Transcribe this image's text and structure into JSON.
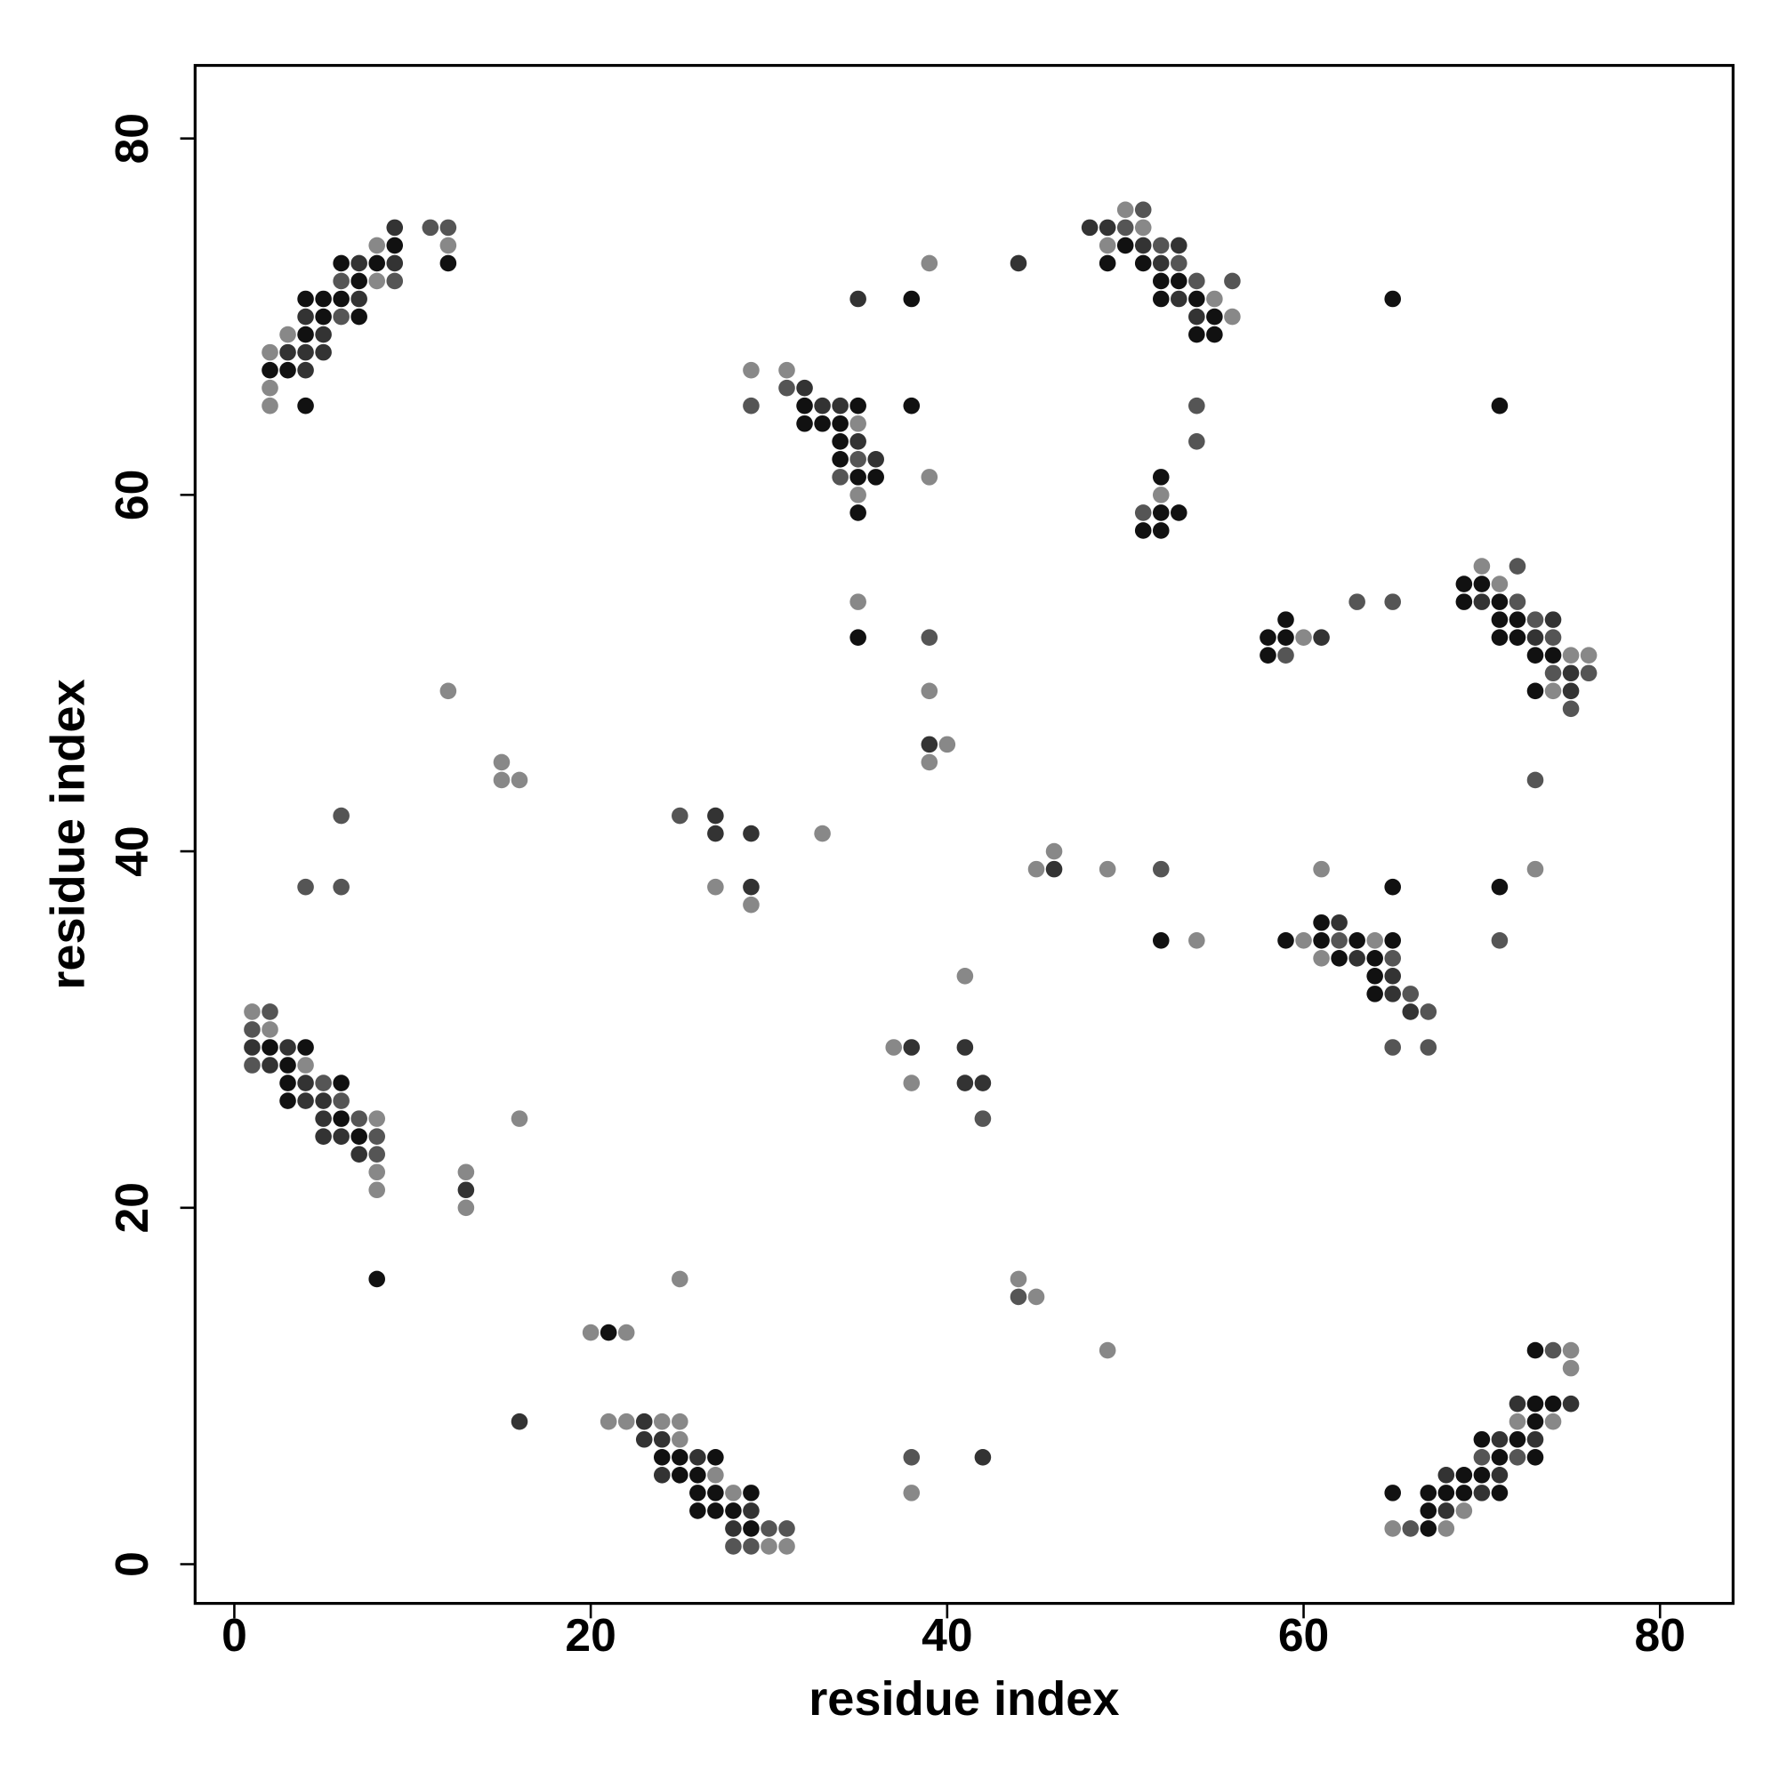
{
  "chart_data": {
    "type": "scatter",
    "xlabel": "residue index",
    "ylabel": "residue index",
    "xlim": [
      -2.2,
      84.1
    ],
    "ylim": [
      -2.2,
      84.1
    ],
    "xticks": [
      0,
      20,
      40,
      60,
      80
    ],
    "yticks": [
      0,
      20,
      40,
      60,
      80
    ],
    "grid": false,
    "x": [
      9,
      11,
      12,
      8,
      9,
      12,
      6,
      7,
      8,
      9,
      12,
      6,
      7,
      8,
      9,
      4,
      5,
      6,
      7,
      4,
      5,
      6,
      7,
      3,
      4,
      5,
      2,
      3,
      4,
      5,
      2,
      3,
      4,
      2,
      2,
      4,
      1,
      2,
      1,
      2,
      1,
      2,
      3,
      4,
      1,
      2,
      3,
      4,
      3,
      4,
      5,
      6,
      3,
      4,
      5,
      6,
      5,
      6,
      7,
      8,
      5,
      6,
      7,
      8,
      7,
      8,
      8,
      13,
      8,
      13,
      13,
      8,
      16,
      4,
      6,
      6,
      15,
      15,
      16,
      12,
      25,
      20,
      21,
      22,
      16,
      21,
      22,
      23,
      24,
      25,
      23,
      24,
      25,
      24,
      25,
      26,
      27,
      24,
      25,
      26,
      27,
      26,
      27,
      28,
      29,
      26,
      27,
      28,
      29,
      28,
      29,
      30,
      31,
      28,
      29,
      30,
      31,
      25,
      27,
      27,
      29,
      33,
      27,
      29,
      29,
      29,
      31,
      31,
      32,
      29,
      32,
      33,
      34,
      35,
      38,
      32,
      33,
      34,
      35,
      34,
      35,
      34,
      35,
      36,
      34,
      35,
      36,
      39,
      35,
      35,
      35,
      38,
      39,
      44,
      35,
      35,
      39,
      39,
      39,
      40,
      39,
      41,
      37,
      38,
      41,
      38,
      41,
      42,
      42,
      38,
      42,
      38,
      44,
      44,
      45,
      49,
      46,
      45,
      46,
      49,
      52,
      61,
      52,
      54,
      50,
      51,
      48,
      49,
      50,
      51,
      49,
      50,
      51,
      52,
      53,
      49,
      51,
      52,
      53,
      52,
      53,
      54,
      56,
      52,
      53,
      54,
      55,
      54,
      55,
      56,
      54,
      55,
      54,
      54,
      52,
      52,
      51,
      52,
      53,
      51,
      52,
      65,
      71,
      70,
      72,
      69,
      70,
      71,
      63,
      65,
      69,
      70,
      71,
      72,
      59,
      71,
      72,
      73,
      74,
      58,
      59,
      60,
      61,
      71,
      72,
      73,
      74,
      58,
      59,
      73,
      74,
      75,
      76,
      74,
      75,
      76,
      73,
      74,
      75,
      75,
      73,
      73,
      65,
      71,
      71,
      61,
      62,
      59,
      60,
      61,
      62,
      63,
      64,
      65,
      61,
      62,
      63,
      64,
      65,
      64,
      65,
      64,
      65,
      66,
      66,
      67,
      65,
      67,
      73,
      74,
      75,
      75,
      72,
      73,
      74,
      75,
      72,
      73,
      74,
      70,
      71,
      72,
      73,
      70,
      71,
      72,
      73,
      68,
      69,
      70,
      71,
      65,
      67,
      68,
      69,
      70,
      71,
      67,
      68,
      69,
      65,
      66,
      67,
      68
    ],
    "y": [
      75,
      75,
      75,
      74,
      74,
      74,
      73,
      73,
      73,
      73,
      73,
      72,
      72,
      72,
      72,
      71,
      71,
      71,
      71,
      70,
      70,
      70,
      70,
      69,
      69,
      69,
      68,
      68,
      68,
      68,
      67,
      67,
      67,
      66,
      65,
      65,
      31,
      31,
      30,
      30,
      29,
      29,
      29,
      29,
      28,
      28,
      28,
      28,
      27,
      27,
      27,
      27,
      26,
      26,
      26,
      26,
      25,
      25,
      25,
      25,
      24,
      24,
      24,
      24,
      23,
      23,
      22,
      22,
      21,
      21,
      20,
      16,
      25,
      38,
      38,
      42,
      45,
      44,
      44,
      49,
      16,
      13,
      13,
      13,
      8,
      8,
      8,
      8,
      8,
      8,
      7,
      7,
      7,
      6,
      6,
      6,
      6,
      5,
      5,
      5,
      5,
      4,
      4,
      4,
      4,
      3,
      3,
      3,
      3,
      2,
      2,
      2,
      2,
      1,
      1,
      1,
      1,
      42,
      42,
      41,
      41,
      41,
      38,
      38,
      37,
      67,
      67,
      66,
      66,
      65,
      65,
      65,
      65,
      65,
      65,
      64,
      64,
      64,
      64,
      63,
      63,
      62,
      62,
      62,
      61,
      61,
      61,
      61,
      60,
      59,
      71,
      71,
      73,
      73,
      54,
      52,
      52,
      49,
      46,
      46,
      45,
      33,
      29,
      29,
      29,
      27,
      27,
      27,
      25,
      6,
      6,
      4,
      16,
      15,
      15,
      12,
      40,
      39,
      39,
      39,
      39,
      39,
      35,
      35,
      76,
      76,
      75,
      75,
      75,
      75,
      74,
      74,
      74,
      74,
      74,
      73,
      73,
      73,
      73,
      72,
      72,
      72,
      72,
      71,
      71,
      71,
      71,
      70,
      70,
      70,
      69,
      69,
      65,
      63,
      61,
      60,
      59,
      59,
      59,
      58,
      58,
      71,
      65,
      56,
      56,
      55,
      55,
      55,
      54,
      54,
      54,
      54,
      54,
      54,
      53,
      53,
      53,
      53,
      53,
      52,
      52,
      52,
      52,
      52,
      52,
      52,
      52,
      51,
      51,
      51,
      51,
      51,
      51,
      50,
      50,
      50,
      49,
      49,
      49,
      48,
      44,
      39,
      38,
      38,
      35,
      36,
      36,
      35,
      35,
      35,
      35,
      35,
      35,
      35,
      34,
      34,
      34,
      34,
      34,
      33,
      33,
      32,
      32,
      32,
      31,
      31,
      29,
      29,
      12,
      12,
      12,
      11,
      9,
      9,
      9,
      9,
      8,
      8,
      8,
      7,
      7,
      7,
      7,
      6,
      6,
      6,
      6,
      5,
      5,
      5,
      5,
      4,
      4,
      4,
      4,
      4,
      4,
      3,
      3,
      3,
      2,
      2,
      2,
      2
    ],
    "colors": [
      "#333",
      "#555",
      "#555",
      "#888",
      "#111",
      "#888",
      "#111",
      "#333",
      "#111",
      "#333",
      "#111",
      "#555",
      "#111",
      "#888",
      "#555",
      "#111",
      "#111",
      "#111",
      "#333",
      "#333",
      "#111",
      "#555",
      "#111",
      "#888",
      "#111",
      "#333",
      "#888",
      "#333",
      "#333",
      "#333",
      "#111",
      "#111",
      "#333",
      "#888",
      "#888",
      "#111",
      "#888",
      "#555",
      "#555",
      "#888",
      "#333",
      "#111",
      "#333",
      "#111",
      "#555",
      "#333",
      "#111",
      "#888",
      "#111",
      "#333",
      "#555",
      "#111",
      "#111",
      "#333",
      "#333",
      "#555",
      "#333",
      "#111",
      "#555",
      "#888",
      "#333",
      "#333",
      "#111",
      "#555",
      "#333",
      "#555",
      "#888",
      "#888",
      "#888",
      "#333",
      "#888",
      "#111",
      "#888",
      "#555",
      "#555",
      "#555",
      "#888",
      "#888",
      "#888",
      "#888",
      "#888",
      "#888",
      "#111",
      "#888",
      "#333",
      "#888",
      "#888",
      "#333",
      "#888",
      "#888",
      "#333",
      "#333",
      "#888",
      "#111",
      "#111",
      "#333",
      "#111",
      "#333",
      "#111",
      "#111",
      "#888",
      "#111",
      "#111",
      "#888",
      "#111",
      "#111",
      "#111",
      "#111",
      "#333",
      "#333",
      "#111",
      "#555",
      "#555",
      "#555",
      "#555",
      "#888",
      "#888",
      "#555",
      "#333",
      "#333",
      "#333",
      "#888",
      "#888",
      "#333",
      "#888",
      "#888",
      "#888",
      "#555",
      "#333",
      "#555",
      "#111",
      "#333",
      "#333",
      "#111",
      "#111",
      "#111",
      "#111",
      "#111",
      "#888",
      "#111",
      "#333",
      "#111",
      "#555",
      "#333",
      "#555",
      "#111",
      "#111",
      "#888",
      "#888",
      "#111",
      "#333",
      "#111",
      "#888",
      "#333",
      "#888",
      "#111",
      "#555",
      "#888",
      "#333",
      "#888",
      "#888",
      "#888",
      "#888",
      "#333",
      "#333",
      "#888",
      "#333",
      "#333",
      "#555",
      "#555",
      "#333",
      "#888",
      "#888",
      "#555",
      "#888",
      "#888",
      "#888",
      "#888",
      "#333",
      "#888",
      "#555",
      "#888",
      "#111",
      "#888",
      "#888",
      "#555",
      "#333",
      "#333",
      "#555",
      "#888",
      "#888",
      "#111",
      "#333",
      "#555",
      "#333",
      "#111",
      "#111",
      "#333",
      "#555",
      "#111",
      "#111",
      "#555",
      "#555",
      "#111",
      "#333",
      "#111",
      "#888",
      "#333",
      "#111",
      "#888",
      "#111",
      "#111",
      "#555",
      "#555",
      "#111",
      "#888",
      "#555",
      "#111",
      "#111",
      "#111",
      "#111",
      "#111",
      "#111",
      "#888",
      "#555",
      "#111",
      "#111",
      "#888",
      "#555",
      "#555",
      "#111",
      "#333",
      "#111",
      "#555",
      "#111",
      "#111",
      "#111",
      "#555",
      "#333",
      "#111",
      "#111",
      "#888",
      "#333",
      "#111",
      "#111",
      "#333",
      "#555",
      "#111",
      "#555",
      "#111",
      "#111",
      "#888",
      "#888",
      "#555",
      "#333",
      "#555",
      "#111",
      "#888",
      "#333",
      "#555",
      "#555",
      "#888",
      "#111",
      "#111",
      "#555",
      "#111",
      "#333",
      "#111",
      "#888",
      "#111",
      "#555",
      "#111",
      "#888",
      "#111",
      "#888",
      "#111",
      "#333",
      "#111",
      "#555",
      "#111",
      "#333",
      "#111",
      "#333",
      "#555",
      "#333",
      "#555",
      "#555",
      "#555",
      "#111",
      "#555",
      "#888",
      "#888",
      "#333",
      "#111",
      "#111",
      "#333",
      "#888",
      "#111",
      "#888",
      "#111",
      "#333",
      "#111",
      "#333",
      "#555",
      "#111",
      "#555",
      "#111",
      "#333",
      "#111",
      "#111",
      "#333",
      "#111",
      "#111",
      "#111",
      "#111",
      "#333",
      "#111",
      "#111",
      "#333",
      "#888",
      "#888",
      "#555",
      "#111",
      "#888"
    ]
  }
}
